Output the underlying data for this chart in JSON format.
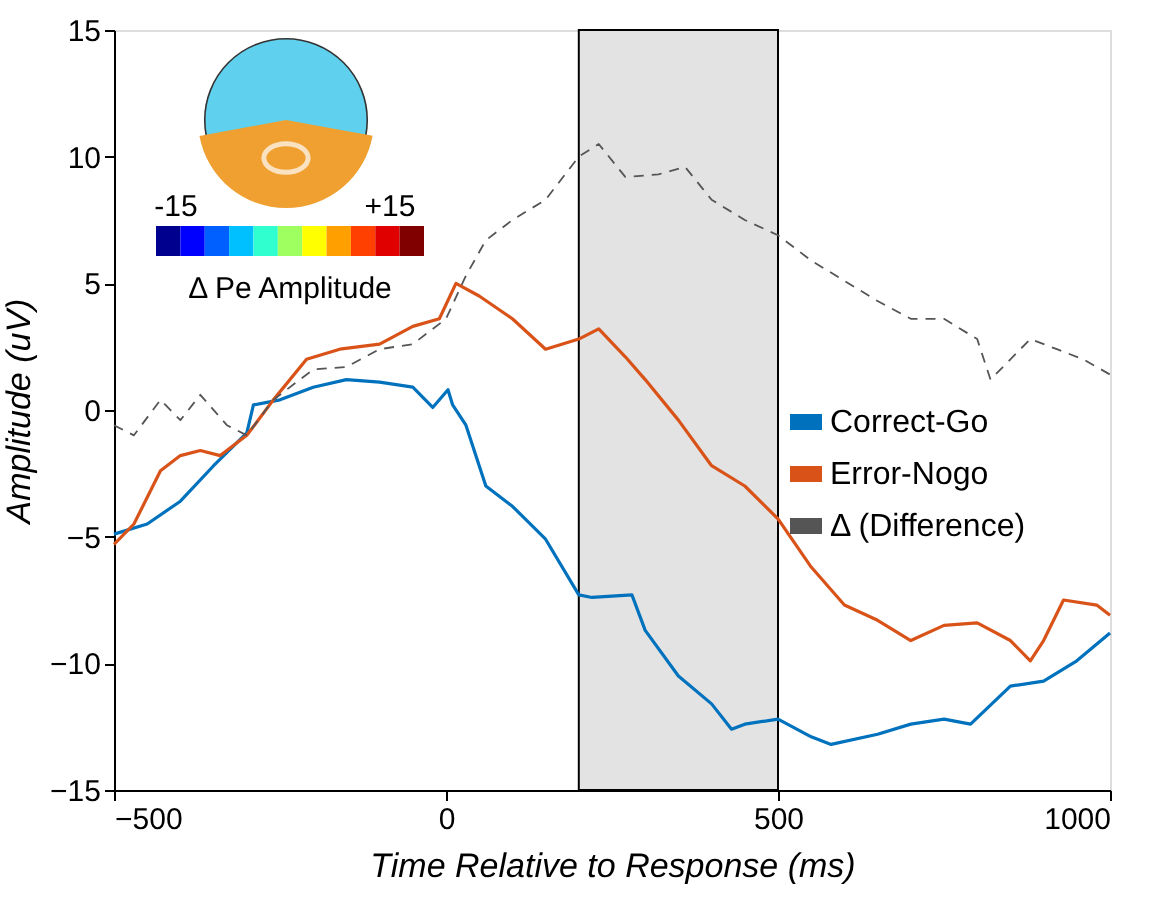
{
  "chart_data": {
    "type": "line",
    "xlabel": "Time Relative to Response (ms)",
    "ylabel": "Amplitude (uV)",
    "xlim": [
      -500,
      1000
    ],
    "xticks": [
      -500,
      0,
      500,
      1000
    ],
    "ylim": [
      -15,
      15
    ],
    "yticks": [
      -15,
      -10,
      -5,
      0,
      5,
      10,
      15
    ],
    "grid": false,
    "legend": "right",
    "bands": [
      {
        "axis": "x",
        "from": 200,
        "to": 500,
        "color": "#e3e3e3"
      }
    ],
    "annotations": [
      "-15",
      "+15",
      "Δ Pe Amplitude"
    ],
    "series": [
      {
        "name": "Correct-Go",
        "color": "#0072bd",
        "line_style": "solid",
        "x": [
          -500,
          -450,
          -400,
          -350,
          -300,
          -290,
          -250,
          -200,
          -150,
          -100,
          -50,
          -20,
          3,
          10,
          30,
          60,
          100,
          150,
          200,
          220,
          280,
          300,
          350,
          400,
          430,
          450,
          500,
          550,
          580,
          650,
          700,
          750,
          790,
          850,
          900,
          950,
          1000
        ],
        "values": [
          -4.9,
          -4.5,
          -3.6,
          -2.2,
          -0.9,
          0.2,
          0.4,
          0.9,
          1.2,
          1.1,
          0.9,
          0.1,
          0.8,
          0.2,
          -0.6,
          -3.0,
          -3.8,
          -5.1,
          -7.3,
          -7.4,
          -7.3,
          -8.7,
          -10.5,
          -11.6,
          -12.6,
          -12.4,
          -12.2,
          -12.9,
          -13.2,
          -12.8,
          -12.4,
          -12.2,
          -12.4,
          -10.9,
          -10.7,
          -9.9,
          -8.8
        ]
      },
      {
        "name": "Error-Nogo",
        "color": "#d95319",
        "line_style": "solid",
        "x": [
          -500,
          -470,
          -430,
          -400,
          -370,
          -340,
          -300,
          -260,
          -210,
          -160,
          -100,
          -50,
          -10,
          15,
          50,
          100,
          150,
          200,
          230,
          270,
          300,
          350,
          400,
          450,
          500,
          550,
          600,
          650,
          700,
          750,
          800,
          850,
          880,
          900,
          930,
          980,
          1000
        ],
        "values": [
          -5.3,
          -4.5,
          -2.4,
          -1.8,
          -1.6,
          -1.8,
          -1.0,
          0.4,
          2.0,
          2.4,
          2.6,
          3.3,
          3.6,
          5.0,
          4.5,
          3.6,
          2.4,
          2.8,
          3.2,
          2.1,
          1.2,
          -0.4,
          -2.2,
          -3.0,
          -4.3,
          -6.2,
          -7.7,
          -8.3,
          -9.1,
          -8.5,
          -8.4,
          -9.1,
          -9.9,
          -9.1,
          -7.5,
          -7.7,
          -8.1
        ]
      },
      {
        "name": "Δ (Difference)",
        "color": "#555555",
        "line_style": "dashed",
        "x": [
          -500,
          -470,
          -430,
          -400,
          -370,
          -330,
          -300,
          -260,
          -200,
          -150,
          -100,
          -50,
          0,
          30,
          60,
          100,
          150,
          200,
          230,
          270,
          320,
          360,
          400,
          450,
          500,
          550,
          600,
          650,
          700,
          750,
          800,
          820,
          850,
          880,
          920,
          960,
          1000
        ],
        "values": [
          -0.6,
          -1.0,
          0.4,
          -0.4,
          0.6,
          -0.6,
          -1.0,
          0.4,
          1.6,
          1.7,
          2.4,
          2.6,
          3.6,
          5.3,
          6.7,
          7.5,
          8.3,
          10.0,
          10.5,
          9.2,
          9.3,
          9.6,
          8.3,
          7.5,
          6.9,
          5.9,
          5.1,
          4.3,
          3.6,
          3.6,
          2.8,
          1.2,
          2.0,
          2.8,
          2.4,
          2.0,
          1.4
        ]
      }
    ]
  }
}
